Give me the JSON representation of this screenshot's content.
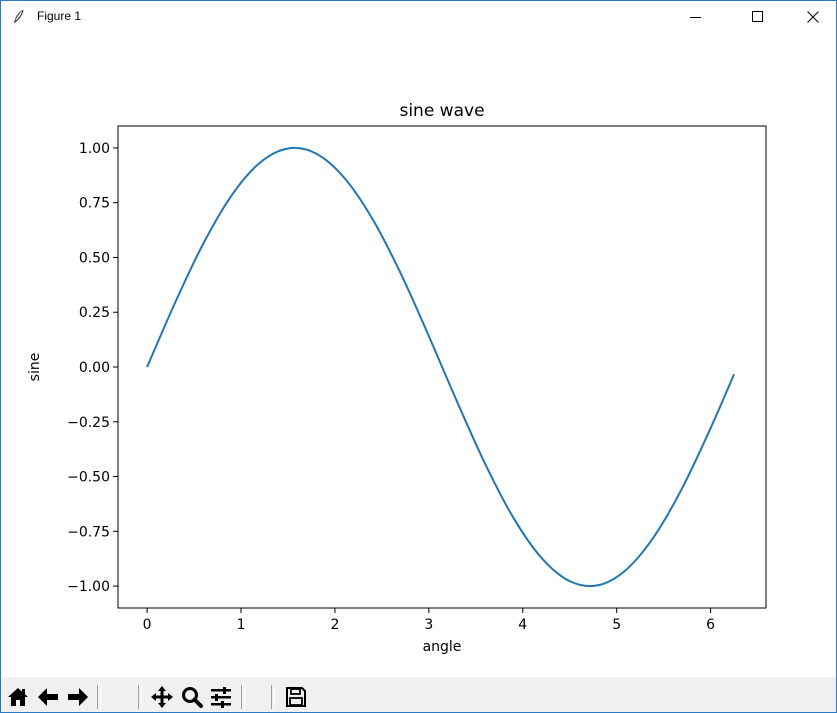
{
  "window": {
    "title": "Figure 1",
    "icons": {
      "app": "feather-icon",
      "minimize": "minimize-icon",
      "maximize": "maximize-icon",
      "close": "close-icon"
    }
  },
  "toolbar": {
    "buttons": [
      {
        "name": "home",
        "icon": "home-icon"
      },
      {
        "name": "back",
        "icon": "arrow-left-icon"
      },
      {
        "name": "forward",
        "icon": "arrow-right-icon"
      },
      {
        "name": "pan",
        "icon": "move-icon"
      },
      {
        "name": "zoom",
        "icon": "magnifier-icon"
      },
      {
        "name": "subplots",
        "icon": "sliders-icon"
      },
      {
        "name": "save",
        "icon": "floppy-icon"
      }
    ]
  },
  "chart_data": {
    "type": "line",
    "title": "sine wave",
    "xlabel": "angle",
    "ylabel": "sine",
    "xlim": [
      -0.31,
      6.59
    ],
    "ylim": [
      -1.1,
      1.1
    ],
    "xticks": [
      0,
      1,
      2,
      3,
      4,
      5,
      6
    ],
    "xtick_labels": [
      "0",
      "1",
      "2",
      "3",
      "4",
      "5",
      "6"
    ],
    "yticks": [
      1.0,
      0.75,
      0.5,
      0.25,
      0.0,
      -0.25,
      -0.5,
      -0.75,
      -1.0
    ],
    "ytick_labels": [
      "1.00",
      "0.75",
      "0.50",
      "0.25",
      "0.00",
      "−0.25",
      "−0.50",
      "−0.75",
      "−1.00"
    ],
    "grid": false,
    "line_color": "#1f77b4",
    "series": [
      {
        "x": [
          0.0,
          0.3,
          0.6,
          0.9,
          1.2,
          1.5,
          1.8,
          2.1,
          2.4,
          2.7,
          3.0,
          3.3,
          3.6,
          3.9,
          4.2,
          4.5,
          4.8,
          5.1,
          5.4,
          5.7,
          6.0,
          6.25
        ],
        "values": [
          0.0,
          0.2955,
          0.5646,
          0.7833,
          0.932,
          0.9975,
          0.9738,
          0.8632,
          0.6755,
          0.4274,
          0.1411,
          -0.1577,
          -0.4425,
          -0.6878,
          -0.8716,
          -0.9775,
          -0.9962,
          -0.9258,
          -0.7728,
          -0.5507,
          -0.2794,
          -0.0332
        ]
      }
    ]
  }
}
